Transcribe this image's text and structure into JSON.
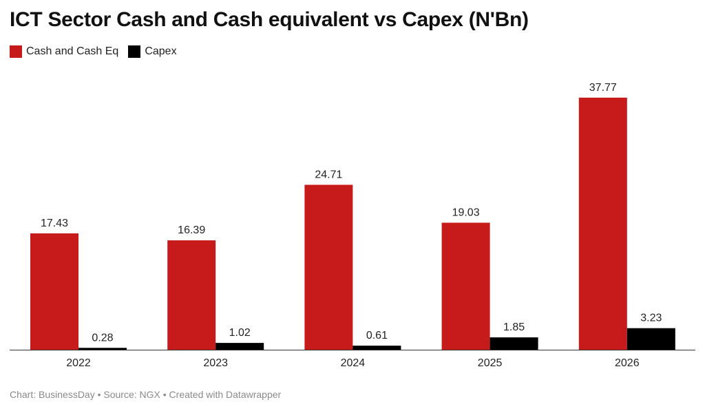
{
  "header": {
    "title": "ICT Sector Cash and Cash equivalent vs Capex (N'Bn)"
  },
  "footer": {
    "text": "Chart: BusinessDay • Source: NGX • Created with Datawrapper"
  },
  "chart_data": {
    "type": "bar",
    "title": "ICT Sector Cash and Cash equivalent vs Capex (N'Bn)",
    "xlabel": "",
    "ylabel": "",
    "categories": [
      "2022",
      "2023",
      "2024",
      "2025",
      "2026"
    ],
    "series": [
      {
        "name": "Cash and Cash Eq",
        "color": "#c71b1b",
        "values": [
          17.43,
          16.39,
          24.71,
          19.03,
          37.77
        ]
      },
      {
        "name": "Capex",
        "color": "#000000",
        "values": [
          0.28,
          1.02,
          0.61,
          1.85,
          3.23
        ]
      }
    ],
    "ylim": [
      0,
      40
    ],
    "grid": false,
    "legend_position": "top-left"
  }
}
